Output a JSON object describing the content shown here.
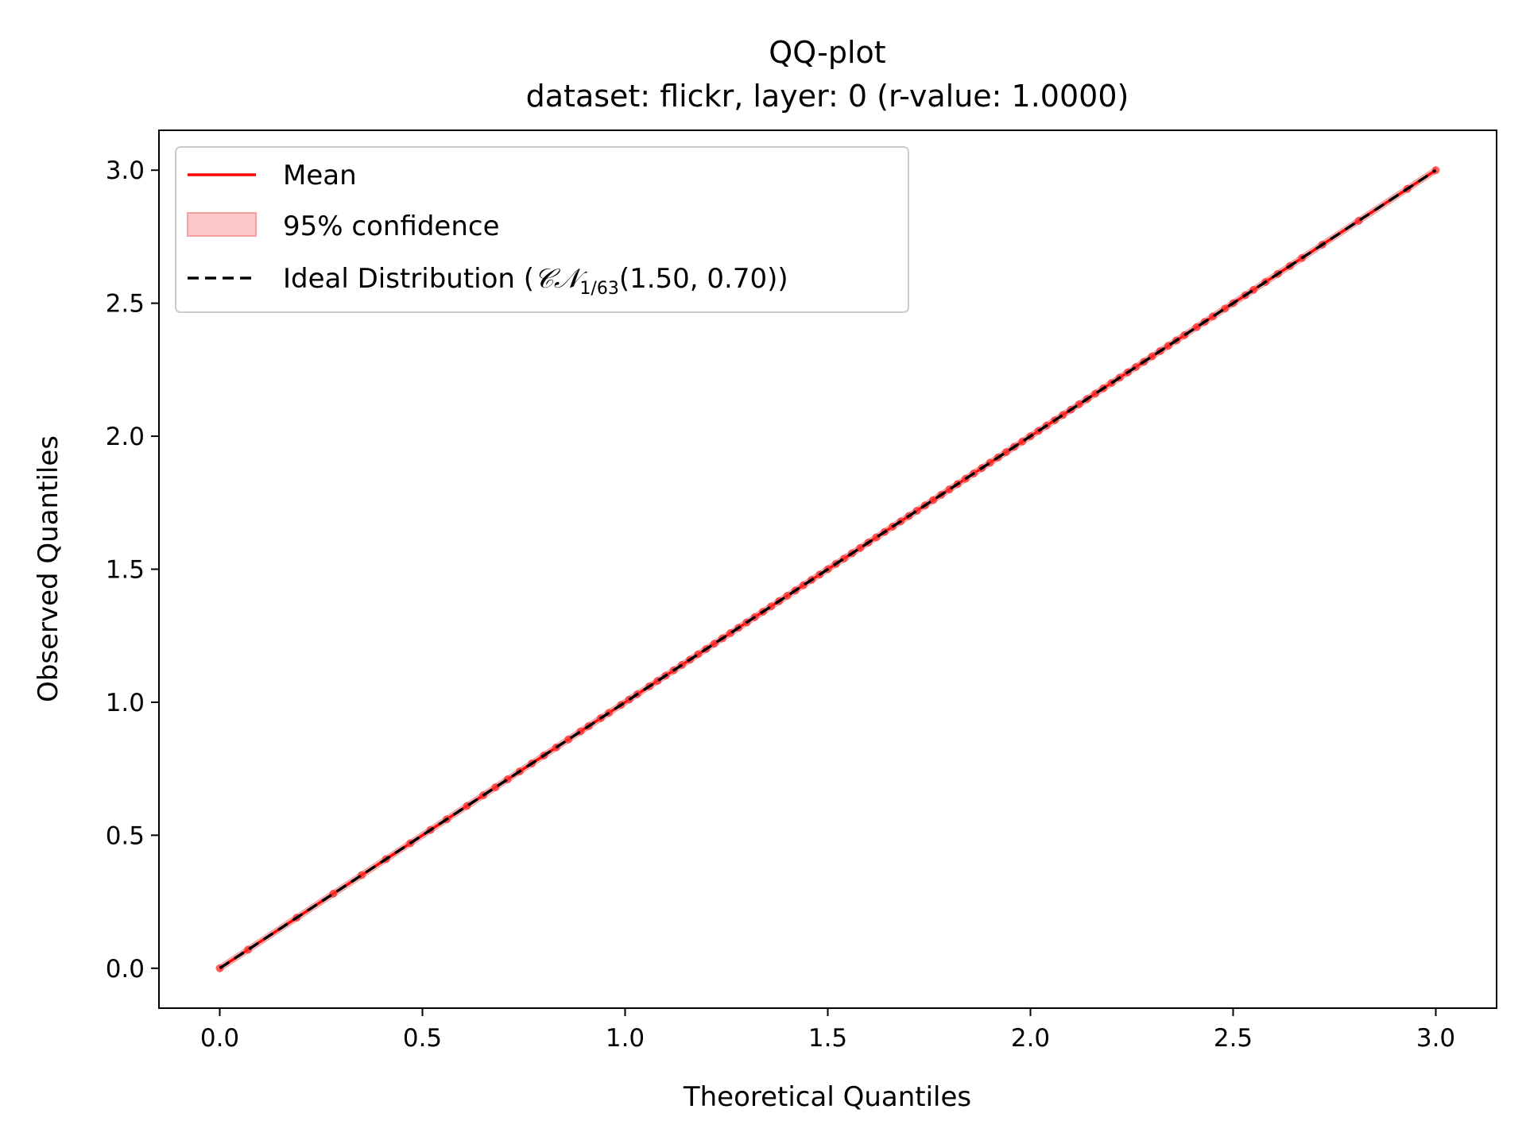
{
  "chart_data": {
    "type": "line",
    "title": "QQ-plot",
    "subtitle": "dataset: flickr, layer: 0 (r-value: 1.0000)",
    "xlabel": "Theoretical Quantiles",
    "ylabel": "Observed Quantiles",
    "xlim": [
      -0.15,
      3.15
    ],
    "ylim": [
      -0.15,
      3.15
    ],
    "xticks": [
      "0.0",
      "0.5",
      "1.0",
      "1.5",
      "2.0",
      "2.5",
      "3.0"
    ],
    "yticks": [
      "0.0",
      "0.5",
      "1.0",
      "1.5",
      "2.0",
      "2.5",
      "3.0"
    ],
    "grid": false,
    "legend_position": "upper-left",
    "legend": [
      {
        "label": "Mean",
        "style": "solid",
        "color": "#ff0000"
      },
      {
        "label": "95% confidence",
        "style": "band",
        "color": "#ffc8c8"
      },
      {
        "label_prefix": "Ideal Distribution (",
        "label_math": "𝒞𝒩",
        "label_sub": "1/63",
        "label_suffix": "(1.50, 0.70))",
        "style": "dashed",
        "color": "#000000"
      }
    ],
    "series": [
      {
        "name": "Mean",
        "x": [
          0.0,
          0.07,
          0.19,
          0.28,
          0.35,
          0.41,
          0.47,
          0.52,
          0.56,
          0.61,
          0.65,
          0.68,
          0.71,
          0.74,
          0.77,
          0.8,
          0.83,
          0.86,
          0.89,
          0.91,
          0.94,
          0.96,
          0.99,
          1.01,
          1.03,
          1.06,
          1.08,
          1.1,
          1.12,
          1.14,
          1.16,
          1.18,
          1.2,
          1.22,
          1.24,
          1.26,
          1.28,
          1.3,
          1.32,
          1.34,
          1.36,
          1.38,
          1.4,
          1.42,
          1.44,
          1.46,
          1.48,
          1.5,
          1.52,
          1.54,
          1.56,
          1.58,
          1.6,
          1.62,
          1.64,
          1.66,
          1.68,
          1.7,
          1.72,
          1.74,
          1.76,
          1.78,
          1.8,
          1.82,
          1.84,
          1.86,
          1.88,
          1.9,
          1.92,
          1.94,
          1.96,
          1.98,
          2.0,
          2.02,
          2.04,
          2.06,
          2.08,
          2.1,
          2.12,
          2.14,
          2.16,
          2.18,
          2.2,
          2.22,
          2.24,
          2.26,
          2.28,
          2.3,
          2.32,
          2.34,
          2.36,
          2.38,
          2.41,
          2.43,
          2.45,
          2.48,
          2.5,
          2.53,
          2.55,
          2.58,
          2.61,
          2.64,
          2.67,
          2.72,
          2.81,
          2.93,
          3.0
        ],
        "y": [
          0.0,
          0.07,
          0.19,
          0.28,
          0.35,
          0.41,
          0.47,
          0.52,
          0.56,
          0.61,
          0.65,
          0.68,
          0.71,
          0.74,
          0.77,
          0.8,
          0.83,
          0.86,
          0.89,
          0.91,
          0.94,
          0.96,
          0.99,
          1.01,
          1.03,
          1.06,
          1.08,
          1.1,
          1.12,
          1.14,
          1.16,
          1.18,
          1.2,
          1.22,
          1.24,
          1.26,
          1.28,
          1.3,
          1.32,
          1.34,
          1.36,
          1.38,
          1.4,
          1.42,
          1.44,
          1.46,
          1.48,
          1.5,
          1.52,
          1.54,
          1.56,
          1.58,
          1.6,
          1.62,
          1.64,
          1.66,
          1.68,
          1.7,
          1.72,
          1.74,
          1.76,
          1.78,
          1.8,
          1.82,
          1.84,
          1.86,
          1.88,
          1.9,
          1.92,
          1.94,
          1.96,
          1.98,
          2.0,
          2.02,
          2.04,
          2.06,
          2.08,
          2.1,
          2.12,
          2.14,
          2.16,
          2.18,
          2.2,
          2.22,
          2.24,
          2.26,
          2.28,
          2.3,
          2.32,
          2.34,
          2.36,
          2.38,
          2.41,
          2.43,
          2.45,
          2.48,
          2.5,
          2.53,
          2.55,
          2.58,
          2.61,
          2.64,
          2.67,
          2.72,
          2.81,
          2.93,
          3.0
        ],
        "color": "#ff0000"
      },
      {
        "name": "Ideal Distribution",
        "x": [
          0.0,
          3.0
        ],
        "y": [
          0.0,
          3.0
        ],
        "color": "#000000",
        "dashed": true
      }
    ],
    "confidence_band": {
      "halfwidth": 0.012,
      "color": "#ffc8c8"
    }
  }
}
